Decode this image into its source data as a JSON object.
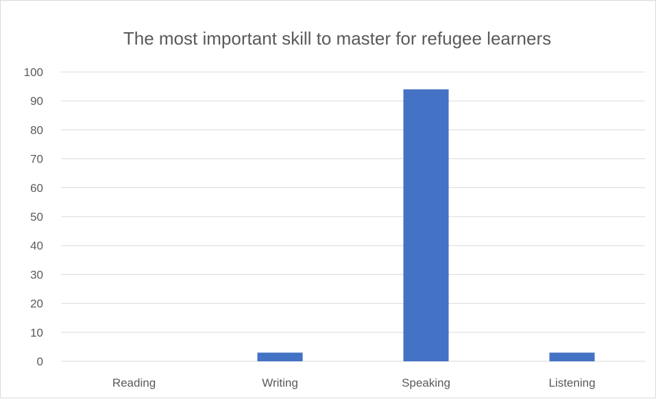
{
  "chart_data": {
    "type": "bar",
    "title": "The most important skill to master for refugee learners",
    "categories": [
      "Reading",
      "Writing",
      "Speaking",
      "Listening"
    ],
    "values": [
      0,
      3,
      94,
      3
    ],
    "ylim": [
      0,
      100
    ],
    "ytick_step": 10,
    "grid": true,
    "legend": "none",
    "bar_color": "#4472c4"
  }
}
